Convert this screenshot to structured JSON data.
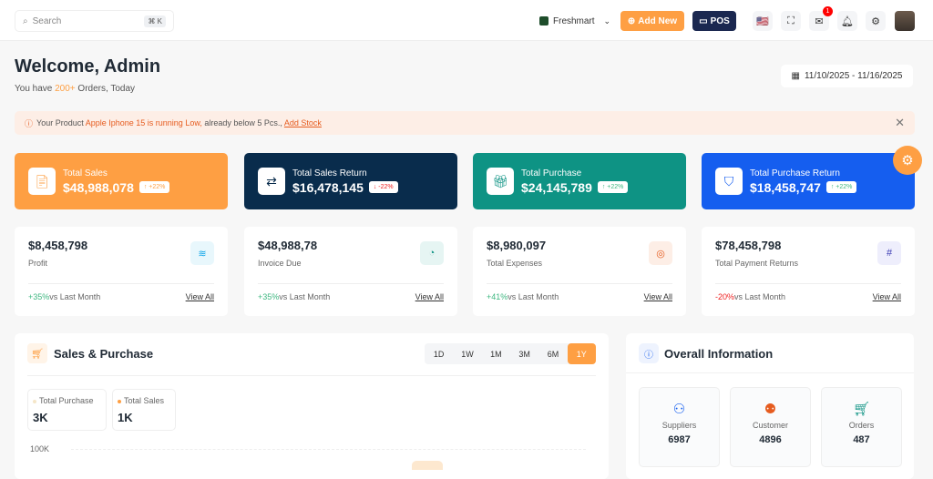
{
  "header": {
    "search_placeholder": "Search",
    "search_shortcut": "⌘ K",
    "store": "Freshmart",
    "add_new": "Add New",
    "pos": "POS",
    "mail_badge": "1"
  },
  "welcome": {
    "title": "Welcome, Admin",
    "sub_prefix": "You have ",
    "sub_count": "200+",
    "sub_suffix": " Orders, Today",
    "date_range": "11/10/2025 - 11/16/2025"
  },
  "alert": {
    "prefix": "Your Product ",
    "product": "Apple Iphone 15 is running Low,",
    "middle": " already below 5 Pcs., ",
    "link": "Add Stock"
  },
  "stat_cards": [
    {
      "label": "Total Sales",
      "value": "$48,988,078",
      "change": "↑ +22%",
      "color": "#fe9f43",
      "change_color": "#fe9f43"
    },
    {
      "label": "Total Sales Return",
      "value": "$16,478,145",
      "change": "↓ -22%",
      "color": "#092c4c",
      "change_color": "#ef1e1e"
    },
    {
      "label": "Total Purchase",
      "value": "$24,145,789",
      "change": "↑ +22%",
      "color": "#0e9384",
      "change_color": "#3eb780"
    },
    {
      "label": "Total Purchase Return",
      "value": "$18,458,747",
      "change": "↑ +22%",
      "color": "#155eef",
      "change_color": "#3eb780"
    }
  ],
  "summary_cards": [
    {
      "value": "$8,458,798",
      "label": "Profit",
      "change": "+35%",
      "change_color": "#3eb780",
      "suffix": " vs Last Month",
      "link": "View All",
      "icon_color": "#0ea5e9",
      "icon_bg": "#e8f7fc"
    },
    {
      "value": "$48,988,78",
      "label": "Invoice Due",
      "change": "+35%",
      "change_color": "#3eb780",
      "suffix": " vs Last Month",
      "link": "View All",
      "icon_color": "#0e9384",
      "icon_bg": "#e6f5f3"
    },
    {
      "value": "$8,980,097",
      "label": "Total Expenses",
      "change": "+41%",
      "change_color": "#3eb780",
      "suffix": " vs Last Month",
      "link": "View All",
      "icon_color": "#e65c1f",
      "icon_bg": "#fdeee6"
    },
    {
      "value": "$78,458,798",
      "label": "Total Payment Returns",
      "change": "-20%",
      "change_color": "#ef1e1e",
      "suffix": " vs Last Month",
      "link": "View All",
      "icon_color": "#3b3bb3",
      "icon_bg": "#eeeefc"
    }
  ],
  "sales_purchase": {
    "title": "Sales & Purchase",
    "ranges": [
      "1D",
      "1W",
      "1M",
      "3M",
      "6M",
      "1Y"
    ],
    "active_range": "1Y",
    "legend": [
      {
        "label": "Total Purchase",
        "value": "3K",
        "color": "#f5e6c8"
      },
      {
        "label": "Total Sales",
        "value": "1K",
        "color": "#fe9f43"
      }
    ],
    "y_tick": "100K"
  },
  "overall": {
    "title": "Overall Information",
    "items": [
      {
        "label": "Suppliers",
        "value": "6987",
        "icon": "user-check",
        "color": "#155eef"
      },
      {
        "label": "Customer",
        "value": "4896",
        "icon": "users",
        "color": "#e65c1f"
      },
      {
        "label": "Orders",
        "value": "487",
        "icon": "cart",
        "color": "#0e9384"
      }
    ]
  }
}
